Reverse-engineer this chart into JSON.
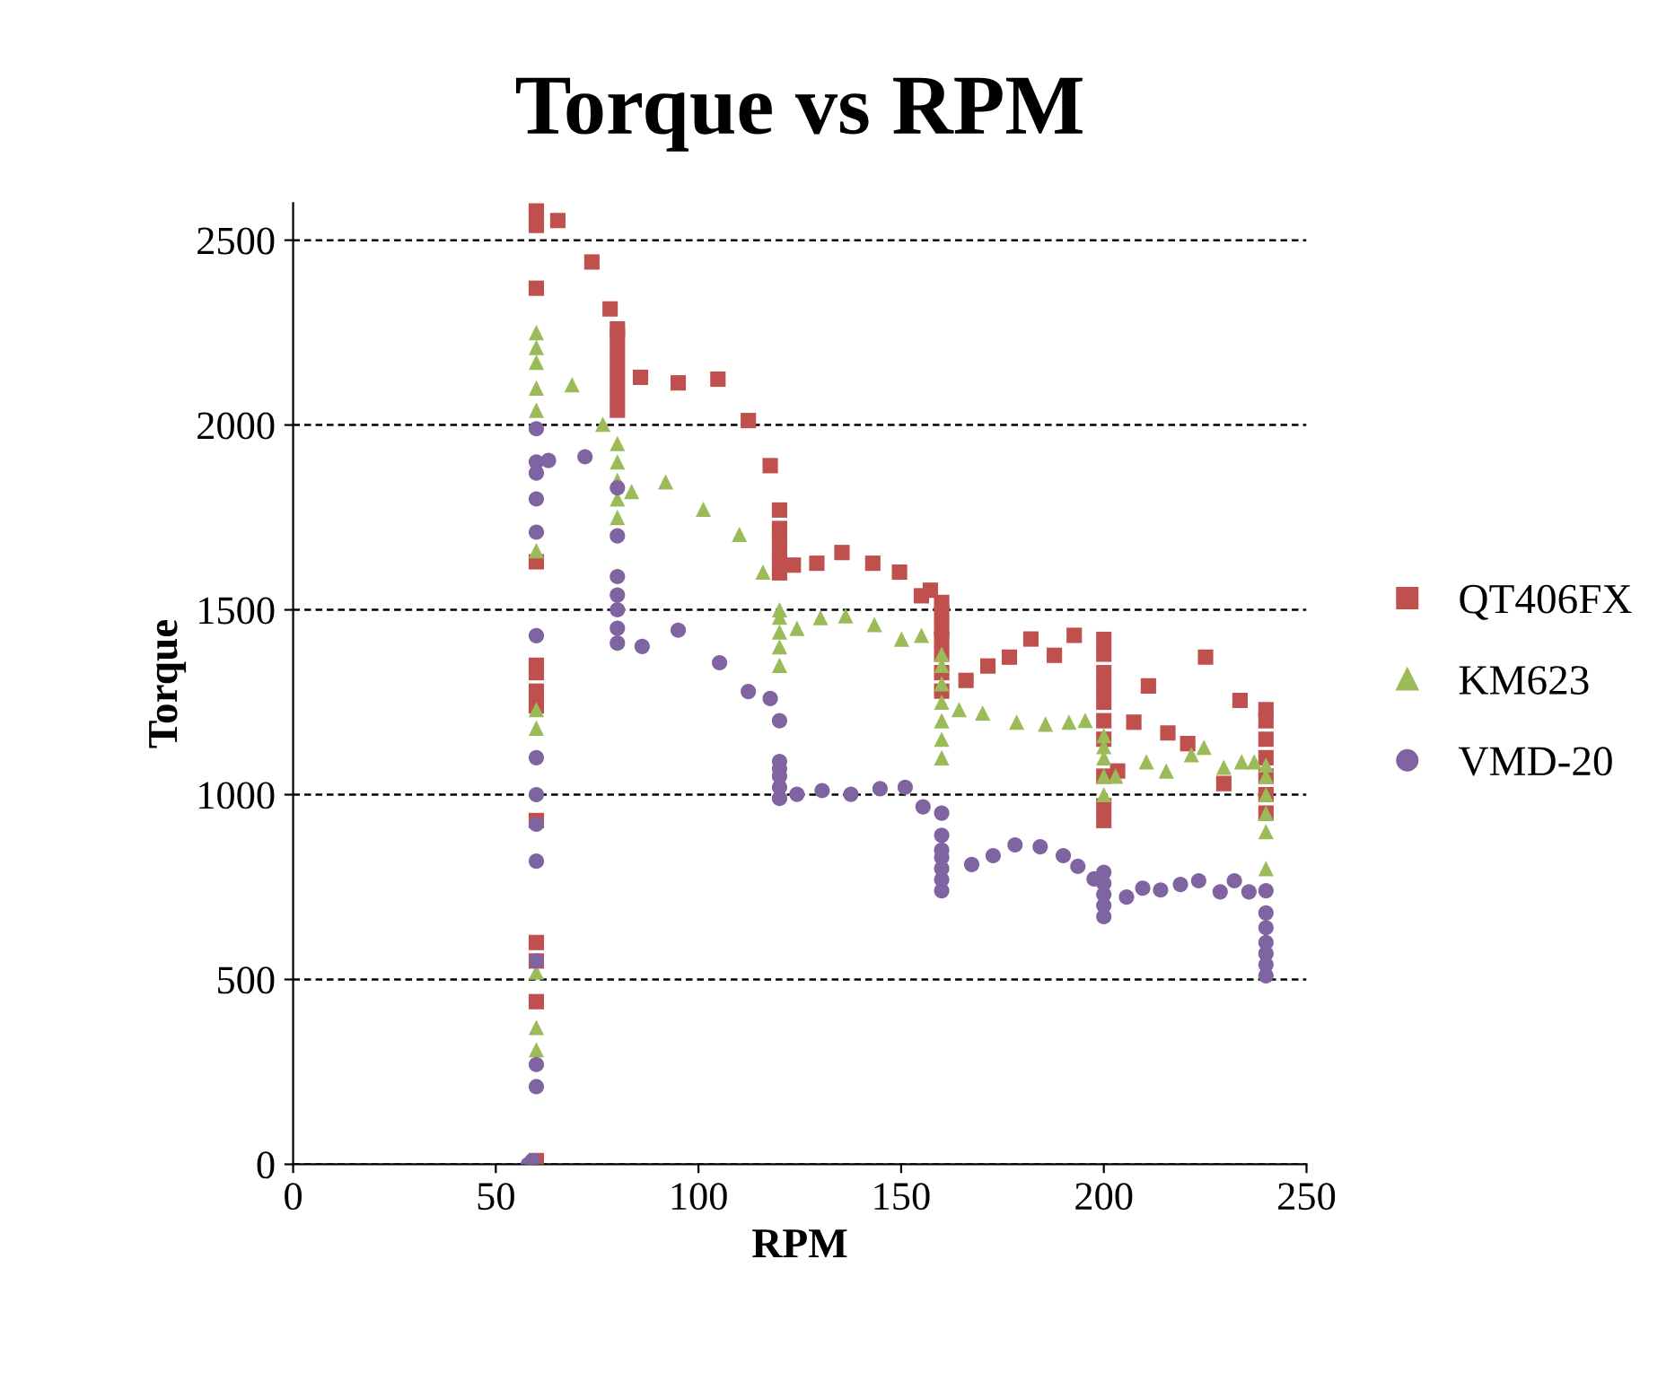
{
  "chart_data": {
    "type": "scatter",
    "title": "Torque vs RPM",
    "xlabel": "RPM",
    "ylabel": "Torque",
    "xlim": [
      0,
      250
    ],
    "xticks": [
      0,
      50,
      100,
      150,
      200,
      250
    ],
    "ylim": [
      0,
      2600
    ],
    "yticks": [
      0,
      500,
      1000,
      1500,
      2000,
      2500
    ],
    "grid": "y",
    "legend": "right",
    "series": [
      {
        "name": "QT406FX",
        "color": "#c0504d",
        "marker": "square",
        "x": [
          60,
          60,
          60,
          60,
          60,
          60,
          60,
          60,
          60,
          60,
          60,
          60,
          60,
          60,
          65.3,
          73.7,
          78.2,
          80,
          80,
          80,
          80,
          80,
          80,
          80,
          85.7,
          95,
          104.8,
          112.3,
          117.7,
          120,
          120,
          120,
          120,
          120,
          120,
          123.4,
          129.2,
          135.4,
          143,
          149.6,
          155,
          157.2,
          160,
          160,
          160,
          160,
          160,
          160,
          160,
          166,
          171.4,
          176.7,
          182,
          187.8,
          192.7,
          200,
          200,
          200,
          200,
          200,
          200,
          200,
          200,
          200,
          200,
          203.4,
          207.4,
          211,
          215.8,
          220.7,
          225.1,
          229.6,
          233.6,
          240,
          240,
          240,
          240,
          240,
          240,
          240
        ],
        "values": [
          10,
          440,
          550,
          600,
          930,
          1240,
          1280,
          1330,
          1350,
          1630,
          2370,
          2540,
          2560,
          2590,
          2553,
          2441,
          2314,
          2040,
          2080,
          2120,
          2160,
          2200,
          2240,
          2260,
          2129,
          2114,
          2124,
          2012,
          1890,
          1600,
          1630,
          1660,
          1700,
          1720,
          1770,
          1621,
          1626,
          1655,
          1626,
          1602,
          1538,
          1553,
          1280,
          1330,
          1380,
          1420,
          1450,
          1490,
          1520,
          1309,
          1348,
          1372,
          1421,
          1377,
          1431,
          930,
          970,
          1050,
          1150,
          1200,
          1250,
          1290,
          1330,
          1380,
          1420,
          1064,
          1196,
          1294,
          1167,
          1138,
          1372,
          1030,
          1255,
          950,
          1000,
          1050,
          1100,
          1150,
          1200,
          1230
        ]
      },
      {
        "name": "KM623",
        "color": "#9bbb59",
        "marker": "triangle",
        "x": [
          60,
          60,
          60,
          60,
          60,
          60,
          60,
          60,
          60,
          60,
          60,
          68.8,
          76.4,
          80,
          80,
          80,
          80,
          80,
          83.5,
          91.9,
          101.2,
          110.1,
          115.9,
          120,
          120,
          120,
          120,
          120,
          124.3,
          130.1,
          136.3,
          143.4,
          150.1,
          155,
          160,
          160,
          160,
          160,
          160,
          160,
          160,
          164.3,
          170.1,
          178.5,
          185.6,
          191.4,
          195.4,
          200,
          200,
          200,
          200,
          200,
          202.9,
          210.5,
          215.4,
          221.6,
          224.7,
          229.6,
          234,
          237.1,
          240,
          240,
          240,
          240,
          240,
          240
        ],
        "values": [
          310,
          370,
          520,
          1180,
          1230,
          1660,
          2040,
          2100,
          2170,
          2210,
          2250,
          2109,
          2002,
          1750,
          1800,
          1850,
          1900,
          1950,
          1820,
          1846,
          1772,
          1704,
          1602,
          1350,
          1400,
          1440,
          1480,
          1500,
          1450,
          1479,
          1484,
          1460,
          1421,
          1431,
          1100,
          1150,
          1200,
          1250,
          1300,
          1350,
          1380,
          1230,
          1221,
          1196,
          1191,
          1196,
          1201,
          1000,
          1050,
          1100,
          1130,
          1160,
          1050,
          1089,
          1064,
          1108,
          1128,
          1074,
          1089,
          1089,
          800,
          900,
          950,
          1000,
          1050,
          1080
        ]
      },
      {
        "name": "VMD-20",
        "color": "#8064a2",
        "marker": "circle",
        "x": [
          58,
          59,
          60,
          60,
          60,
          60,
          60,
          60,
          60,
          60,
          60,
          60,
          60,
          60,
          60,
          63,
          72,
          80,
          80,
          80,
          80,
          80,
          80,
          80,
          86.1,
          95,
          105.2,
          112.3,
          117.7,
          120,
          120,
          120,
          120,
          120,
          120,
          124.3,
          130.5,
          137.6,
          144.8,
          151,
          155.4,
          160,
          160,
          160,
          160,
          160,
          160,
          160,
          167.4,
          172.7,
          178.1,
          184.3,
          190,
          193.6,
          197.6,
          200,
          200,
          200,
          200,
          200,
          205.6,
          209.6,
          214,
          218.9,
          223.4,
          228.7,
          232.2,
          235.8,
          240,
          240,
          240,
          240,
          240,
          240,
          240
        ],
        "values": [
          0,
          10,
          210,
          270,
          550,
          820,
          920,
          1000,
          1100,
          1430,
          1710,
          1800,
          1870,
          1900,
          1990,
          1904,
          1914,
          1410,
          1450,
          1500,
          1540,
          1590,
          1700,
          1830,
          1401,
          1445,
          1357,
          1279,
          1260,
          990,
          1020,
          1050,
          1070,
          1090,
          1200,
          1001,
          1011,
          1001,
          1016,
          1020,
          967,
          740,
          770,
          800,
          830,
          850,
          890,
          950,
          811,
          835,
          864,
          859,
          835,
          806,
          772,
          670,
          700,
          730,
          760,
          790,
          723,
          747,
          742,
          757,
          767,
          737,
          767,
          737,
          510,
          540,
          570,
          600,
          640,
          680,
          740
        ]
      }
    ]
  }
}
